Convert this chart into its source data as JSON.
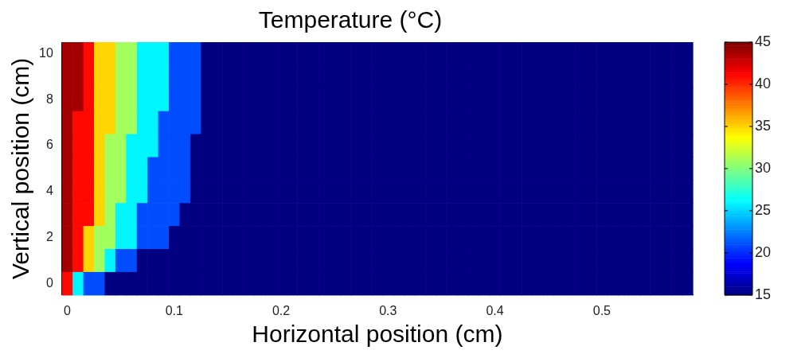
{
  "chart_data": {
    "type": "heatmap",
    "title": "Temperature (°C)",
    "xlabel": "Horizontal position (cm)",
    "ylabel": "Vertical position (cm)",
    "categories": [
      "0",
      null,
      null,
      null,
      null,
      null,
      null,
      null,
      null,
      null,
      "0.1",
      null,
      null,
      null,
      null,
      null,
      null,
      null,
      null,
      null,
      "0.2",
      null,
      null,
      null,
      null,
      null,
      null,
      null,
      null,
      null,
      "0.3",
      null,
      null,
      null,
      null,
      null,
      null,
      null,
      null,
      null,
      "0.4",
      null,
      null,
      null,
      null,
      null,
      null,
      null,
      null,
      null,
      "0.5",
      null,
      null,
      null,
      null,
      null,
      null,
      null,
      null
    ],
    "y_categories": [
      "10",
      null,
      "8",
      null,
      "6",
      null,
      "4",
      null,
      "2",
      null,
      "0"
    ],
    "cells": [
      [
        44,
        44,
        41,
        35,
        35,
        31,
        31,
        26,
        26,
        26,
        21,
        21,
        21,
        15,
        15,
        15,
        15,
        15,
        15,
        15,
        15,
        15,
        15,
        15,
        15,
        15,
        15,
        15,
        15,
        15,
        15,
        15,
        15,
        15,
        15,
        15,
        15,
        15,
        15,
        15,
        15,
        15,
        15,
        15,
        15,
        15,
        15,
        15,
        15,
        15,
        15,
        15,
        15,
        15,
        15,
        15,
        15,
        15,
        15
      ],
      [
        44,
        44,
        41,
        35,
        35,
        31,
        31,
        26,
        26,
        26,
        21,
        21,
        21,
        15,
        15,
        15,
        15,
        15,
        15,
        15,
        15,
        15,
        15,
        15,
        15,
        15,
        15,
        15,
        15,
        15,
        15,
        15,
        15,
        15,
        15,
        15,
        15,
        15,
        15,
        15,
        15,
        15,
        15,
        15,
        15,
        15,
        15,
        15,
        15,
        15,
        15,
        15,
        15,
        15,
        15,
        15,
        15,
        15,
        15
      ],
      [
        44,
        44,
        41,
        35,
        35,
        31,
        31,
        26,
        26,
        26,
        21,
        21,
        21,
        15,
        15,
        15,
        15,
        15,
        15,
        15,
        15,
        15,
        15,
        15,
        15,
        15,
        15,
        15,
        15,
        15,
        15,
        15,
        15,
        15,
        15,
        15,
        15,
        15,
        15,
        15,
        15,
        15,
        15,
        15,
        15,
        15,
        15,
        15,
        15,
        15,
        15,
        15,
        15,
        15,
        15,
        15,
        15,
        15,
        15
      ],
      [
        44,
        41,
        41,
        35,
        35,
        31,
        31,
        26,
        26,
        21,
        21,
        21,
        21,
        15,
        15,
        15,
        15,
        15,
        15,
        15,
        15,
        15,
        15,
        15,
        15,
        15,
        15,
        15,
        15,
        15,
        15,
        15,
        15,
        15,
        15,
        15,
        15,
        15,
        15,
        15,
        15,
        15,
        15,
        15,
        15,
        15,
        15,
        15,
        15,
        15,
        15,
        15,
        15,
        15,
        15,
        15,
        15,
        15,
        15
      ],
      [
        44,
        41,
        41,
        35,
        31,
        31,
        26,
        26,
        26,
        21,
        21,
        21,
        15,
        15,
        15,
        15,
        15,
        15,
        15,
        15,
        15,
        15,
        15,
        15,
        15,
        15,
        15,
        15,
        15,
        15,
        15,
        15,
        15,
        15,
        15,
        15,
        15,
        15,
        15,
        15,
        15,
        15,
        15,
        15,
        15,
        15,
        15,
        15,
        15,
        15,
        15,
        15,
        15,
        15,
        15,
        15,
        15,
        15,
        15
      ],
      [
        44,
        41,
        41,
        35,
        31,
        31,
        26,
        26,
        21,
        21,
        21,
        21,
        15,
        15,
        15,
        15,
        15,
        15,
        15,
        15,
        15,
        15,
        15,
        15,
        15,
        15,
        15,
        15,
        15,
        15,
        15,
        15,
        15,
        15,
        15,
        15,
        15,
        15,
        15,
        15,
        15,
        15,
        15,
        15,
        15,
        15,
        15,
        15,
        15,
        15,
        15,
        15,
        15,
        15,
        15,
        15,
        15,
        15,
        15
      ],
      [
        44,
        41,
        41,
        35,
        31,
        31,
        26,
        26,
        21,
        21,
        21,
        21,
        15,
        15,
        15,
        15,
        15,
        15,
        15,
        15,
        15,
        15,
        15,
        15,
        15,
        15,
        15,
        15,
        15,
        15,
        15,
        15,
        15,
        15,
        15,
        15,
        15,
        15,
        15,
        15,
        15,
        15,
        15,
        15,
        15,
        15,
        15,
        15,
        15,
        15,
        15,
        15,
        15,
        15,
        15,
        15,
        15,
        15,
        15
      ],
      [
        44,
        41,
        41,
        35,
        31,
        26,
        26,
        21,
        21,
        21,
        21,
        15,
        15,
        15,
        15,
        15,
        15,
        15,
        15,
        15,
        15,
        15,
        15,
        15,
        15,
        15,
        15,
        15,
        15,
        15,
        15,
        15,
        15,
        15,
        15,
        15,
        15,
        15,
        15,
        15,
        15,
        15,
        15,
        15,
        15,
        15,
        15,
        15,
        15,
        15,
        15,
        15,
        15,
        15,
        15,
        15,
        15,
        15,
        15
      ],
      [
        44,
        41,
        35,
        31,
        31,
        26,
        26,
        21,
        21,
        21,
        15,
        15,
        15,
        15,
        15,
        15,
        15,
        15,
        15,
        15,
        15,
        15,
        15,
        15,
        15,
        15,
        15,
        15,
        15,
        15,
        15,
        15,
        15,
        15,
        15,
        15,
        15,
        15,
        15,
        15,
        15,
        15,
        15,
        15,
        15,
        15,
        15,
        15,
        15,
        15,
        15,
        15,
        15,
        15,
        15,
        15,
        15,
        15,
        15
      ],
      [
        44,
        41,
        35,
        31,
        26,
        21,
        21,
        15,
        15,
        15,
        15,
        15,
        15,
        15,
        15,
        15,
        15,
        15,
        15,
        15,
        15,
        15,
        15,
        15,
        15,
        15,
        15,
        15,
        15,
        15,
        15,
        15,
        15,
        15,
        15,
        15,
        15,
        15,
        15,
        15,
        15,
        15,
        15,
        15,
        15,
        15,
        15,
        15,
        15,
        15,
        15,
        15,
        15,
        15,
        15,
        15,
        15,
        15,
        15
      ],
      [
        41,
        26,
        21,
        21,
        15,
        15,
        15,
        15,
        15,
        15,
        15,
        15,
        15,
        15,
        15,
        15,
        15,
        15,
        15,
        15,
        15,
        15,
        15,
        15,
        15,
        15,
        15,
        15,
        15,
        15,
        15,
        15,
        15,
        15,
        15,
        15,
        15,
        15,
        15,
        15,
        15,
        15,
        15,
        15,
        15,
        15,
        15,
        15,
        15,
        15,
        15,
        15,
        15,
        15,
        15,
        15,
        15,
        15,
        15
      ]
    ],
    "clim": [
      15,
      45
    ],
    "cticks": [
      15,
      20,
      25,
      30,
      35,
      40,
      45
    ]
  }
}
